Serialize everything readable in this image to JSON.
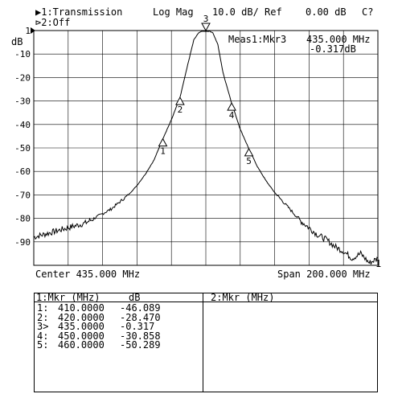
{
  "header": {
    "trace1": "▶1:Transmission",
    "trace2": "⊳2:Off",
    "format": "Log Mag",
    "scale": "10.0 dB/",
    "ref_label": "Ref",
    "ref_value": "0.00 dB",
    "status": "C?"
  },
  "chart_data": {
    "type": "line",
    "ylabel": "dB",
    "ylim": [
      -100,
      0
    ],
    "xlim": [
      335,
      535
    ],
    "y_ticks": [
      "1",
      "-10",
      "-20",
      "-30",
      "-40",
      "-50",
      "-60",
      "-70",
      "-80",
      "-90"
    ],
    "center_label": "Center 435.000 MHz",
    "span_label": "Span 200.000 MHz",
    "ref_marker_label": "1",
    "active_marker_readout": {
      "name": "Meas1:Mkr3",
      "freq": "435.000 MHz",
      "value": "-0.317dB"
    },
    "series": [
      {
        "x": [
          335,
          340,
          345,
          350,
          355,
          360,
          365,
          370,
          375,
          380,
          385,
          390,
          395,
          400,
          405,
          410,
          415,
          420,
          425,
          428,
          431,
          433,
          435,
          437,
          439,
          442,
          445,
          450,
          455,
          460,
          465,
          470,
          475,
          480,
          485,
          490,
          495,
          500,
          505,
          510,
          515,
          520,
          525,
          530,
          535
        ],
        "y": [
          -88,
          -87,
          -86,
          -85,
          -84,
          -83,
          -82,
          -80,
          -78,
          -76,
          -73,
          -70,
          -66,
          -61,
          -55,
          -46.1,
          -38,
          -28.5,
          -13,
          -4,
          -0.8,
          -0.3,
          -0.3,
          -0.3,
          -0.8,
          -6,
          -18,
          -30.9,
          -42,
          -50.3,
          -58,
          -64,
          -69,
          -73,
          -77,
          -81,
          -84,
          -87,
          -89,
          -92,
          -94,
          -97,
          -95,
          -99,
          -97
        ]
      }
    ],
    "markers": [
      {
        "label": "1",
        "x": 410.0,
        "y": -46.089
      },
      {
        "label": "2",
        "x": 420.0,
        "y": -28.47
      },
      {
        "label": "3",
        "x": 435.0,
        "y": -0.317
      },
      {
        "label": "4",
        "x": 450.0,
        "y": -30.858
      },
      {
        "label": "5",
        "x": 460.0,
        "y": -50.289
      }
    ]
  },
  "marker_table": {
    "left_header": "1:Mkr (MHz)",
    "left_header_unit": "dB",
    "right_header": "2:Mkr (MHz)",
    "rows": [
      {
        "id": "1:",
        "freq": "410.0000",
        "value": "-46.089"
      },
      {
        "id": "2:",
        "freq": "420.0000",
        "value": "-28.470"
      },
      {
        "id": "3>",
        "freq": "435.0000",
        "value": "-0.317"
      },
      {
        "id": "4:",
        "freq": "450.0000",
        "value": "-30.858"
      },
      {
        "id": "5:",
        "freq": "460.0000",
        "value": "-50.289"
      }
    ]
  }
}
